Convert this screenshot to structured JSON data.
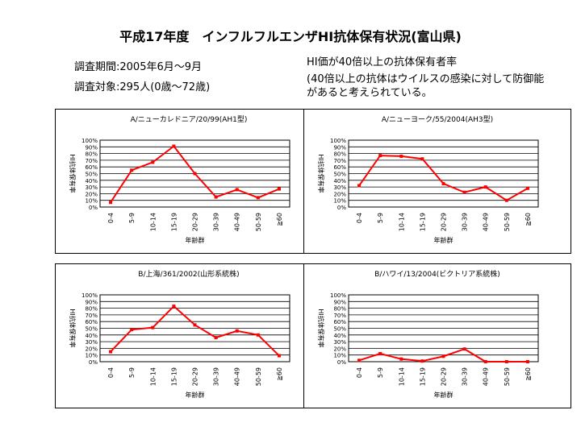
{
  "header": {
    "title": "平成17年度　インフルフルエンザHI抗体保有状況(富山県)",
    "period": "調査期間:2005年6月～9月",
    "subjects": "調査対象:295人(0歳～72歳)",
    "desc_title": "HI価が40倍以上の抗体保有者率",
    "desc_body": "(40倍以上の抗体はウイルスの感染に対して防御能があると考えられている。"
  },
  "chart_data": [
    {
      "type": "line",
      "title": "A/ニューカレドニア/20/99(AH1型)",
      "xlabel": "年齢群",
      "ylabel": "HI抗体保有率",
      "categories": [
        "0-4",
        "5-9",
        "10-14",
        "15-19",
        "20-29",
        "30-39",
        "40-49",
        "50-59",
        "≧60"
      ],
      "yticks": [
        "0%",
        "10%",
        "20%",
        "30%",
        "40%",
        "50%",
        "60%",
        "70%",
        "80%",
        "90%",
        "100%"
      ],
      "ylim": [
        0,
        100
      ],
      "grid": true,
      "series": [
        {
          "values": [
            7,
            55,
            67,
            91,
            50,
            15,
            26,
            14,
            27
          ]
        }
      ]
    },
    {
      "type": "line",
      "title": "A/ニューヨーク/55/2004(AH3型)",
      "xlabel": "年齢群",
      "ylabel": "HI抗体保有率",
      "categories": [
        "0-4",
        "5-9",
        "10-14",
        "15-19",
        "20-29",
        "30-39",
        "40-49",
        "50-59",
        "≧60"
      ],
      "yticks": [
        "0%",
        "10%",
        "20%",
        "30%",
        "40%",
        "50%",
        "60%",
        "70%",
        "80%",
        "90%",
        "100%"
      ],
      "ylim": [
        0,
        100
      ],
      "grid": true,
      "series": [
        {
          "values": [
            32,
            77,
            76,
            72,
            35,
            22,
            30,
            10,
            28
          ]
        }
      ]
    },
    {
      "type": "line",
      "title": "B/上海/361/2002(山形系統株)",
      "xlabel": "年齢群",
      "ylabel": "HI抗体保有率",
      "categories": [
        "0-4",
        "5-9",
        "10-14",
        "15-19",
        "20-29",
        "30-39",
        "40-49",
        "50-59",
        "≧60"
      ],
      "yticks": [
        "0%",
        "10%",
        "20%",
        "30%",
        "40%",
        "50%",
        "60%",
        "70%",
        "80%",
        "90%",
        "100%"
      ],
      "ylim": [
        0,
        100
      ],
      "grid": true,
      "series": [
        {
          "values": [
            15,
            48,
            51,
            83,
            55,
            36,
            46,
            40,
            9
          ]
        }
      ]
    },
    {
      "type": "line",
      "title": "B/ハワイ/13/2004(ビクトリア系統株)",
      "xlabel": "年齢群",
      "ylabel": "HI抗体保有率",
      "categories": [
        "0-4",
        "5-9",
        "10-14",
        "15-19",
        "20-29",
        "30-39",
        "40-49",
        "50-59",
        "≧60"
      ],
      "yticks": [
        "0%",
        "10%",
        "20%",
        "30%",
        "40%",
        "50%",
        "60%",
        "70%",
        "80%",
        "90%",
        "100%"
      ],
      "ylim": [
        0,
        100
      ],
      "grid": true,
      "series": [
        {
          "values": [
            2,
            12,
            4,
            1,
            8,
            19,
            0,
            0,
            0
          ]
        }
      ]
    }
  ],
  "colors": {
    "series": "#ff0000",
    "grid": "#000000"
  }
}
